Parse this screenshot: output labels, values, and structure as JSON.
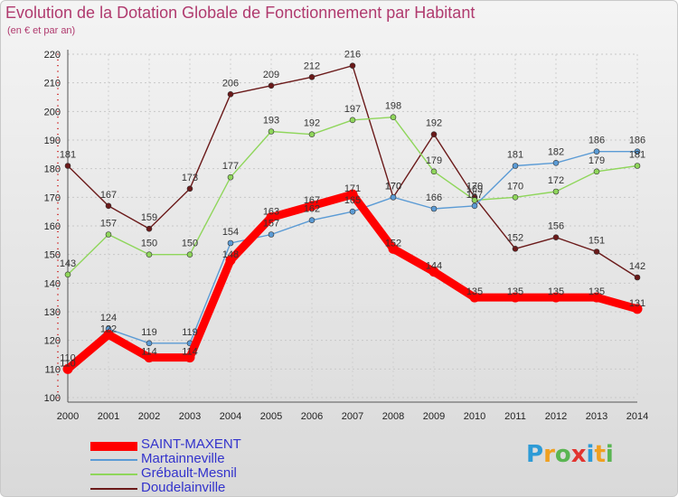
{
  "chart_data": {
    "type": "line",
    "title": "Evolution de la Dotation Globale de Fonctionnement par Habitant",
    "subtitle": "(en € et par an)",
    "xlabel": "",
    "ylabel": "",
    "x": [
      "2000",
      "2001",
      "2002",
      "2003",
      "2004",
      "2005",
      "2006",
      "2007",
      "2008",
      "2009",
      "2010",
      "2011",
      "2012",
      "2013",
      "2014"
    ],
    "ylim": [
      100,
      220
    ],
    "yticks": [
      100,
      110,
      120,
      130,
      140,
      150,
      160,
      170,
      180,
      190,
      200,
      210,
      220
    ],
    "grid": "horizontal dashed",
    "legend": "bottom-left",
    "series": [
      {
        "name": "SAINT-MAXENT",
        "color": "#ff0000",
        "values": [
          110,
          122,
          114,
          114,
          148,
          163,
          167,
          171,
          152,
          144,
          135,
          135,
          135,
          135,
          131
        ]
      },
      {
        "name": "Martainneville",
        "color": "#5b9bd5",
        "values": [
          110,
          124,
          119,
          119,
          154,
          157,
          162,
          165,
          170,
          166,
          167,
          181,
          182,
          186,
          186
        ]
      },
      {
        "name": "Grébault-Mesnil",
        "color": "#8fd65b",
        "values": [
          143,
          157,
          150,
          150,
          177,
          193,
          192,
          197,
          198,
          179,
          169,
          170,
          172,
          179,
          181
        ]
      },
      {
        "name": "Doudelainville",
        "color": "#6b1a1a",
        "values": [
          181,
          167,
          159,
          173,
          206,
          209,
          212,
          216,
          170,
          192,
          170,
          152,
          156,
          151,
          142
        ]
      }
    ]
  },
  "brand": {
    "letters": [
      "P",
      "r",
      "o",
      "x",
      "i",
      "t",
      "i"
    ],
    "colors": [
      "#2e9bd6",
      "#f0a020",
      "#5ab552",
      "#e2342f",
      "#2e9bd6",
      "#f0a020",
      "#5ab552"
    ]
  }
}
